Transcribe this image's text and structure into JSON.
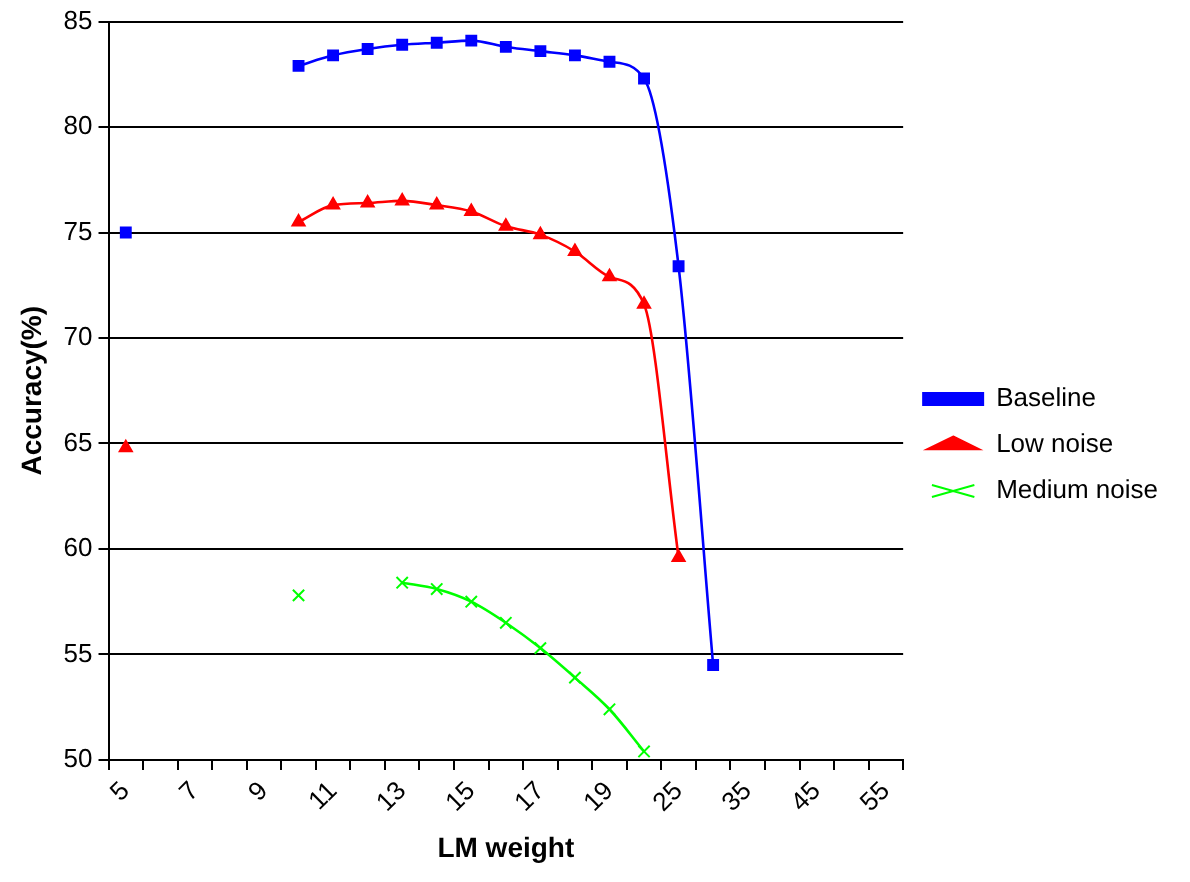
{
  "chart_data": {
    "type": "line",
    "xlabel": "LM weight",
    "ylabel": "Accuracy(%)",
    "categories": [
      "5",
      null,
      "7",
      null,
      "9",
      null,
      "11",
      null,
      "13",
      null,
      "15",
      null,
      "17",
      null,
      "19",
      null,
      "25",
      null,
      "35",
      null,
      "45",
      null,
      "55"
    ],
    "series": [
      {
        "name": "Baseline",
        "color": "#0000ff",
        "marker": "square",
        "values": [
          75.0,
          null,
          null,
          null,
          null,
          82.9,
          83.4,
          83.7,
          83.9,
          84.0,
          84.1,
          83.8,
          83.6,
          83.4,
          83.1,
          82.3,
          73.4,
          54.5,
          null,
          null,
          null,
          null,
          null
        ]
      },
      {
        "name": "Low noise",
        "color": "#ff0000",
        "marker": "triangle",
        "values": [
          64.8,
          null,
          null,
          null,
          null,
          75.5,
          76.3,
          76.4,
          76.5,
          76.3,
          76.0,
          75.3,
          74.9,
          74.1,
          72.9,
          71.6,
          59.6,
          null,
          null,
          null,
          null,
          null,
          null
        ]
      },
      {
        "name": "Medium noise",
        "color": "#00ff00",
        "marker": "cross",
        "values": [
          null,
          null,
          null,
          null,
          null,
          57.8,
          null,
          null,
          58.4,
          58.1,
          57.5,
          56.5,
          55.3,
          53.9,
          52.4,
          50.4,
          null,
          null,
          null,
          null,
          null,
          null,
          null
        ]
      }
    ],
    "ylim": [
      50,
      85
    ],
    "yticks": [
      50,
      55,
      60,
      65,
      70,
      75,
      80,
      85
    ],
    "grid": "y",
    "legend": "right"
  }
}
